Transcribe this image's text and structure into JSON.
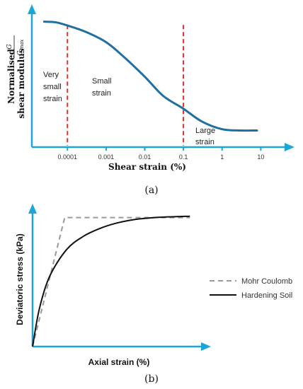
{
  "colors": {
    "axis": "#1aa6d9",
    "curve_a": "#1f6fa3",
    "marker": "#d9312b",
    "mohr": "#999999",
    "hardening": "#111111"
  },
  "chart_data": [
    {
      "type": "line",
      "panel_label": "(a)",
      "xlabel": "Shear strain  (%)",
      "ylabel_line1": "Normalised",
      "ylabel_line2": "shear modulus",
      "ylabel_frac_num": "G",
      "ylabel_frac_den": "G",
      "ylabel_frac_den_sub": "max",
      "x_scale": "log",
      "x_ticks": [
        {
          "value": 0.0001,
          "label": "0.0001"
        },
        {
          "value": 0.001,
          "label": "0.001"
        },
        {
          "value": 0.01,
          "label": "0.01"
        },
        {
          "value": 0.1,
          "label": "0.1"
        },
        {
          "value": 1,
          "label": "1"
        },
        {
          "value": 10,
          "label": "10"
        }
      ],
      "xlim": [
        1.2e-05,
        45
      ],
      "ylim": [
        0,
        1.05
      ],
      "series": [
        {
          "x": [
            2.5e-05,
            5e-05,
            0.0001,
            0.0003,
            0.001,
            0.003,
            0.01,
            0.03,
            0.1,
            0.3,
            1,
            3,
            8
          ],
          "y": [
            0.98,
            0.975,
            0.95,
            0.9,
            0.82,
            0.7,
            0.55,
            0.4,
            0.3,
            0.2,
            0.14,
            0.13,
            0.13
          ]
        }
      ],
      "markers_x": [
        0.0001,
        0.1
      ],
      "regions": [
        {
          "lines": [
            "Very",
            "small",
            "strain"
          ]
        },
        {
          "lines": [
            "Small",
            "strain"
          ]
        },
        {
          "lines": [
            "Large",
            "strain"
          ]
        }
      ]
    },
    {
      "type": "line",
      "panel_label": "(b)",
      "xlabel": "Axial strain (%)",
      "ylabel": "Deviatoric stress (kPa)",
      "xlim": [
        0,
        1
      ],
      "ylim": [
        0,
        1
      ],
      "legend_position": "right",
      "series": [
        {
          "name": "Mohr Coulomb",
          "style": "dashed",
          "x": [
            0,
            0.19,
            0.93
          ],
          "y": [
            0,
            0.96,
            0.96
          ]
        },
        {
          "name": "Hardening Soil",
          "style": "solid",
          "x": [
            0,
            0.04,
            0.1,
            0.2,
            0.3,
            0.4,
            0.5,
            0.6,
            0.7,
            0.8,
            0.93
          ],
          "y": [
            0,
            0.28,
            0.52,
            0.72,
            0.82,
            0.88,
            0.92,
            0.945,
            0.958,
            0.965,
            0.97
          ]
        }
      ]
    }
  ]
}
